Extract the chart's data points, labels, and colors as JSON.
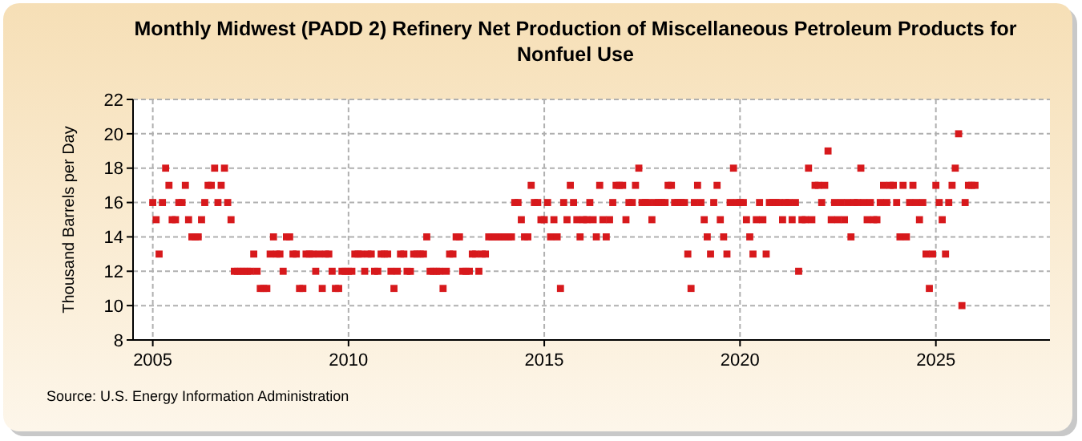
{
  "chart_data": {
    "type": "scatter",
    "title": "Monthly Midwest (PADD 2) Refinery Net Production of Miscellaneous Petroleum Products for Nonfuel Use",
    "ylabel": "Thousand Barrels per Day",
    "annotations": [
      "Source: U.S. Energy Information Administration"
    ],
    "marker": "square",
    "grid": true,
    "xlim": [
      "2004-07",
      "2027-12"
    ],
    "xticks": [
      {
        "value": "2005-01",
        "label": "2005"
      },
      {
        "value": "2010-01",
        "label": "2010"
      },
      {
        "value": "2015-01",
        "label": "2015"
      },
      {
        "value": "2020-01",
        "label": "2020"
      },
      {
        "value": "2025-01",
        "label": "2025"
      }
    ],
    "ylim": [
      8,
      22
    ],
    "yticks": [
      8,
      10,
      12,
      14,
      16,
      18,
      20,
      22
    ],
    "x": [
      "2005-01",
      "2005-02",
      "2005-03",
      "2005-04",
      "2005-05",
      "2005-06",
      "2005-07",
      "2005-08",
      "2005-09",
      "2005-10",
      "2005-11",
      "2005-12",
      "2006-01",
      "2006-02",
      "2006-03",
      "2006-04",
      "2006-05",
      "2006-06",
      "2006-07",
      "2006-08",
      "2006-09",
      "2006-10",
      "2006-11",
      "2006-12",
      "2007-01",
      "2007-02",
      "2007-03",
      "2007-04",
      "2007-05",
      "2007-06",
      "2007-07",
      "2007-08",
      "2007-09",
      "2007-10",
      "2007-11",
      "2007-12",
      "2008-01",
      "2008-02",
      "2008-03",
      "2008-04",
      "2008-05",
      "2008-06",
      "2008-07",
      "2008-08",
      "2008-09",
      "2008-10",
      "2008-11",
      "2008-12",
      "2009-01",
      "2009-02",
      "2009-03",
      "2009-04",
      "2009-05",
      "2009-06",
      "2009-07",
      "2009-08",
      "2009-09",
      "2009-10",
      "2009-11",
      "2009-12",
      "2010-01",
      "2010-02",
      "2010-03",
      "2010-04",
      "2010-05",
      "2010-06",
      "2010-07",
      "2010-08",
      "2010-09",
      "2010-10",
      "2010-11",
      "2010-12",
      "2011-01",
      "2011-02",
      "2011-03",
      "2011-04",
      "2011-05",
      "2011-06",
      "2011-07",
      "2011-08",
      "2011-09",
      "2011-10",
      "2011-11",
      "2011-12",
      "2012-01",
      "2012-02",
      "2012-03",
      "2012-04",
      "2012-05",
      "2012-06",
      "2012-07",
      "2012-08",
      "2012-09",
      "2012-10",
      "2012-11",
      "2012-12",
      "2013-01",
      "2013-02",
      "2013-03",
      "2013-04",
      "2013-05",
      "2013-06",
      "2013-07",
      "2013-08",
      "2013-09",
      "2013-10",
      "2013-11",
      "2013-12",
      "2014-01",
      "2014-02",
      "2014-03",
      "2014-04",
      "2014-05",
      "2014-06",
      "2014-07",
      "2014-08",
      "2014-09",
      "2014-10",
      "2014-11",
      "2014-12",
      "2015-01",
      "2015-02",
      "2015-03",
      "2015-04",
      "2015-05",
      "2015-06",
      "2015-07",
      "2015-08",
      "2015-09",
      "2015-10",
      "2015-11",
      "2015-12",
      "2016-01",
      "2016-02",
      "2016-03",
      "2016-04",
      "2016-05",
      "2016-06",
      "2016-07",
      "2016-08",
      "2016-09",
      "2016-10",
      "2016-11",
      "2016-12",
      "2017-01",
      "2017-02",
      "2017-03",
      "2017-04",
      "2017-05",
      "2017-06",
      "2017-07",
      "2017-08",
      "2017-09",
      "2017-10",
      "2017-11",
      "2017-12",
      "2018-01",
      "2018-02",
      "2018-03",
      "2018-04",
      "2018-05",
      "2018-06",
      "2018-07",
      "2018-08",
      "2018-09",
      "2018-10",
      "2018-11",
      "2018-12",
      "2019-01",
      "2019-02",
      "2019-03",
      "2019-04",
      "2019-05",
      "2019-06",
      "2019-07",
      "2019-08",
      "2019-09",
      "2019-10",
      "2019-11",
      "2019-12",
      "2020-01",
      "2020-02",
      "2020-03",
      "2020-04",
      "2020-05",
      "2020-06",
      "2020-07",
      "2020-08",
      "2020-09",
      "2020-10",
      "2020-11",
      "2020-12",
      "2021-01",
      "2021-02",
      "2021-03",
      "2021-04",
      "2021-05",
      "2021-06",
      "2021-07",
      "2021-08",
      "2021-09",
      "2021-10",
      "2021-11",
      "2021-12",
      "2022-01",
      "2022-02",
      "2022-03",
      "2022-04",
      "2022-05",
      "2022-06",
      "2022-07",
      "2022-08",
      "2022-09",
      "2022-10",
      "2022-11",
      "2022-12",
      "2023-01",
      "2023-02",
      "2023-03",
      "2023-04",
      "2023-05",
      "2023-06",
      "2023-07",
      "2023-08",
      "2023-09",
      "2023-10",
      "2023-11",
      "2023-12",
      "2024-01",
      "2024-02",
      "2024-03",
      "2024-04",
      "2024-05",
      "2024-06",
      "2024-07",
      "2024-08",
      "2024-09",
      "2024-10",
      "2024-11",
      "2024-12",
      "2025-01",
      "2025-02",
      "2025-03",
      "2025-04",
      "2025-05",
      "2025-06",
      "2025-07",
      "2025-08",
      "2025-09",
      "2025-10",
      "2025-11",
      "2025-12",
      "2026-01"
    ],
    "series": [
      {
        "color": "#d7191c",
        "values": [
          16,
          15,
          13,
          16,
          18,
          17,
          15,
          15,
          16,
          16,
          17,
          15,
          14,
          14,
          14,
          15,
          16,
          17,
          17,
          18,
          16,
          17,
          18,
          16,
          15,
          12,
          12,
          12,
          12,
          12,
          12,
          13,
          12,
          11,
          11,
          11,
          13,
          14,
          13,
          13,
          12,
          14,
          14,
          13,
          13,
          11,
          11,
          13,
          13,
          13,
          12,
          13,
          11,
          13,
          13,
          12,
          11,
          11,
          12,
          12,
          12,
          12,
          13,
          13,
          13,
          12,
          13,
          13,
          12,
          12,
          13,
          13,
          13,
          12,
          11,
          12,
          13,
          13,
          12,
          12,
          13,
          13,
          13,
          13,
          14,
          12,
          12,
          12,
          12,
          11,
          12,
          13,
          13,
          14,
          14,
          12,
          12,
          12,
          13,
          13,
          12,
          13,
          13,
          14,
          14,
          14,
          14,
          14,
          14,
          14,
          14,
          16,
          16,
          15,
          14,
          14,
          17,
          16,
          16,
          15,
          15,
          16,
          14,
          15,
          14,
          11,
          16,
          15,
          17,
          16,
          15,
          14,
          15,
          15,
          16,
          15,
          14,
          17,
          15,
          14,
          15,
          16,
          17,
          17,
          17,
          15,
          16,
          16,
          17,
          18,
          16,
          16,
          16,
          15,
          16,
          16,
          16,
          16,
          17,
          17,
          16,
          16,
          16,
          16,
          13,
          11,
          16,
          17,
          16,
          15,
          14,
          13,
          16,
          17,
          15,
          14,
          13,
          16,
          18,
          16,
          16,
          16,
          15,
          14,
          13,
          15,
          16,
          15,
          13,
          16,
          16,
          16,
          16,
          15,
          16,
          16,
          15,
          16,
          12,
          15,
          15,
          18,
          15,
          17,
          17,
          16,
          17,
          19,
          15,
          16,
          15,
          16,
          15,
          16,
          14,
          16,
          16,
          18,
          16,
          15,
          16,
          15,
          15,
          16,
          17,
          16,
          17,
          17,
          16,
          14,
          17,
          14,
          16,
          17,
          16,
          15,
          16,
          13,
          11,
          13,
          17,
          16,
          15,
          13,
          16,
          17,
          18,
          20,
          10,
          16,
          17,
          17,
          17
        ]
      }
    ]
  }
}
